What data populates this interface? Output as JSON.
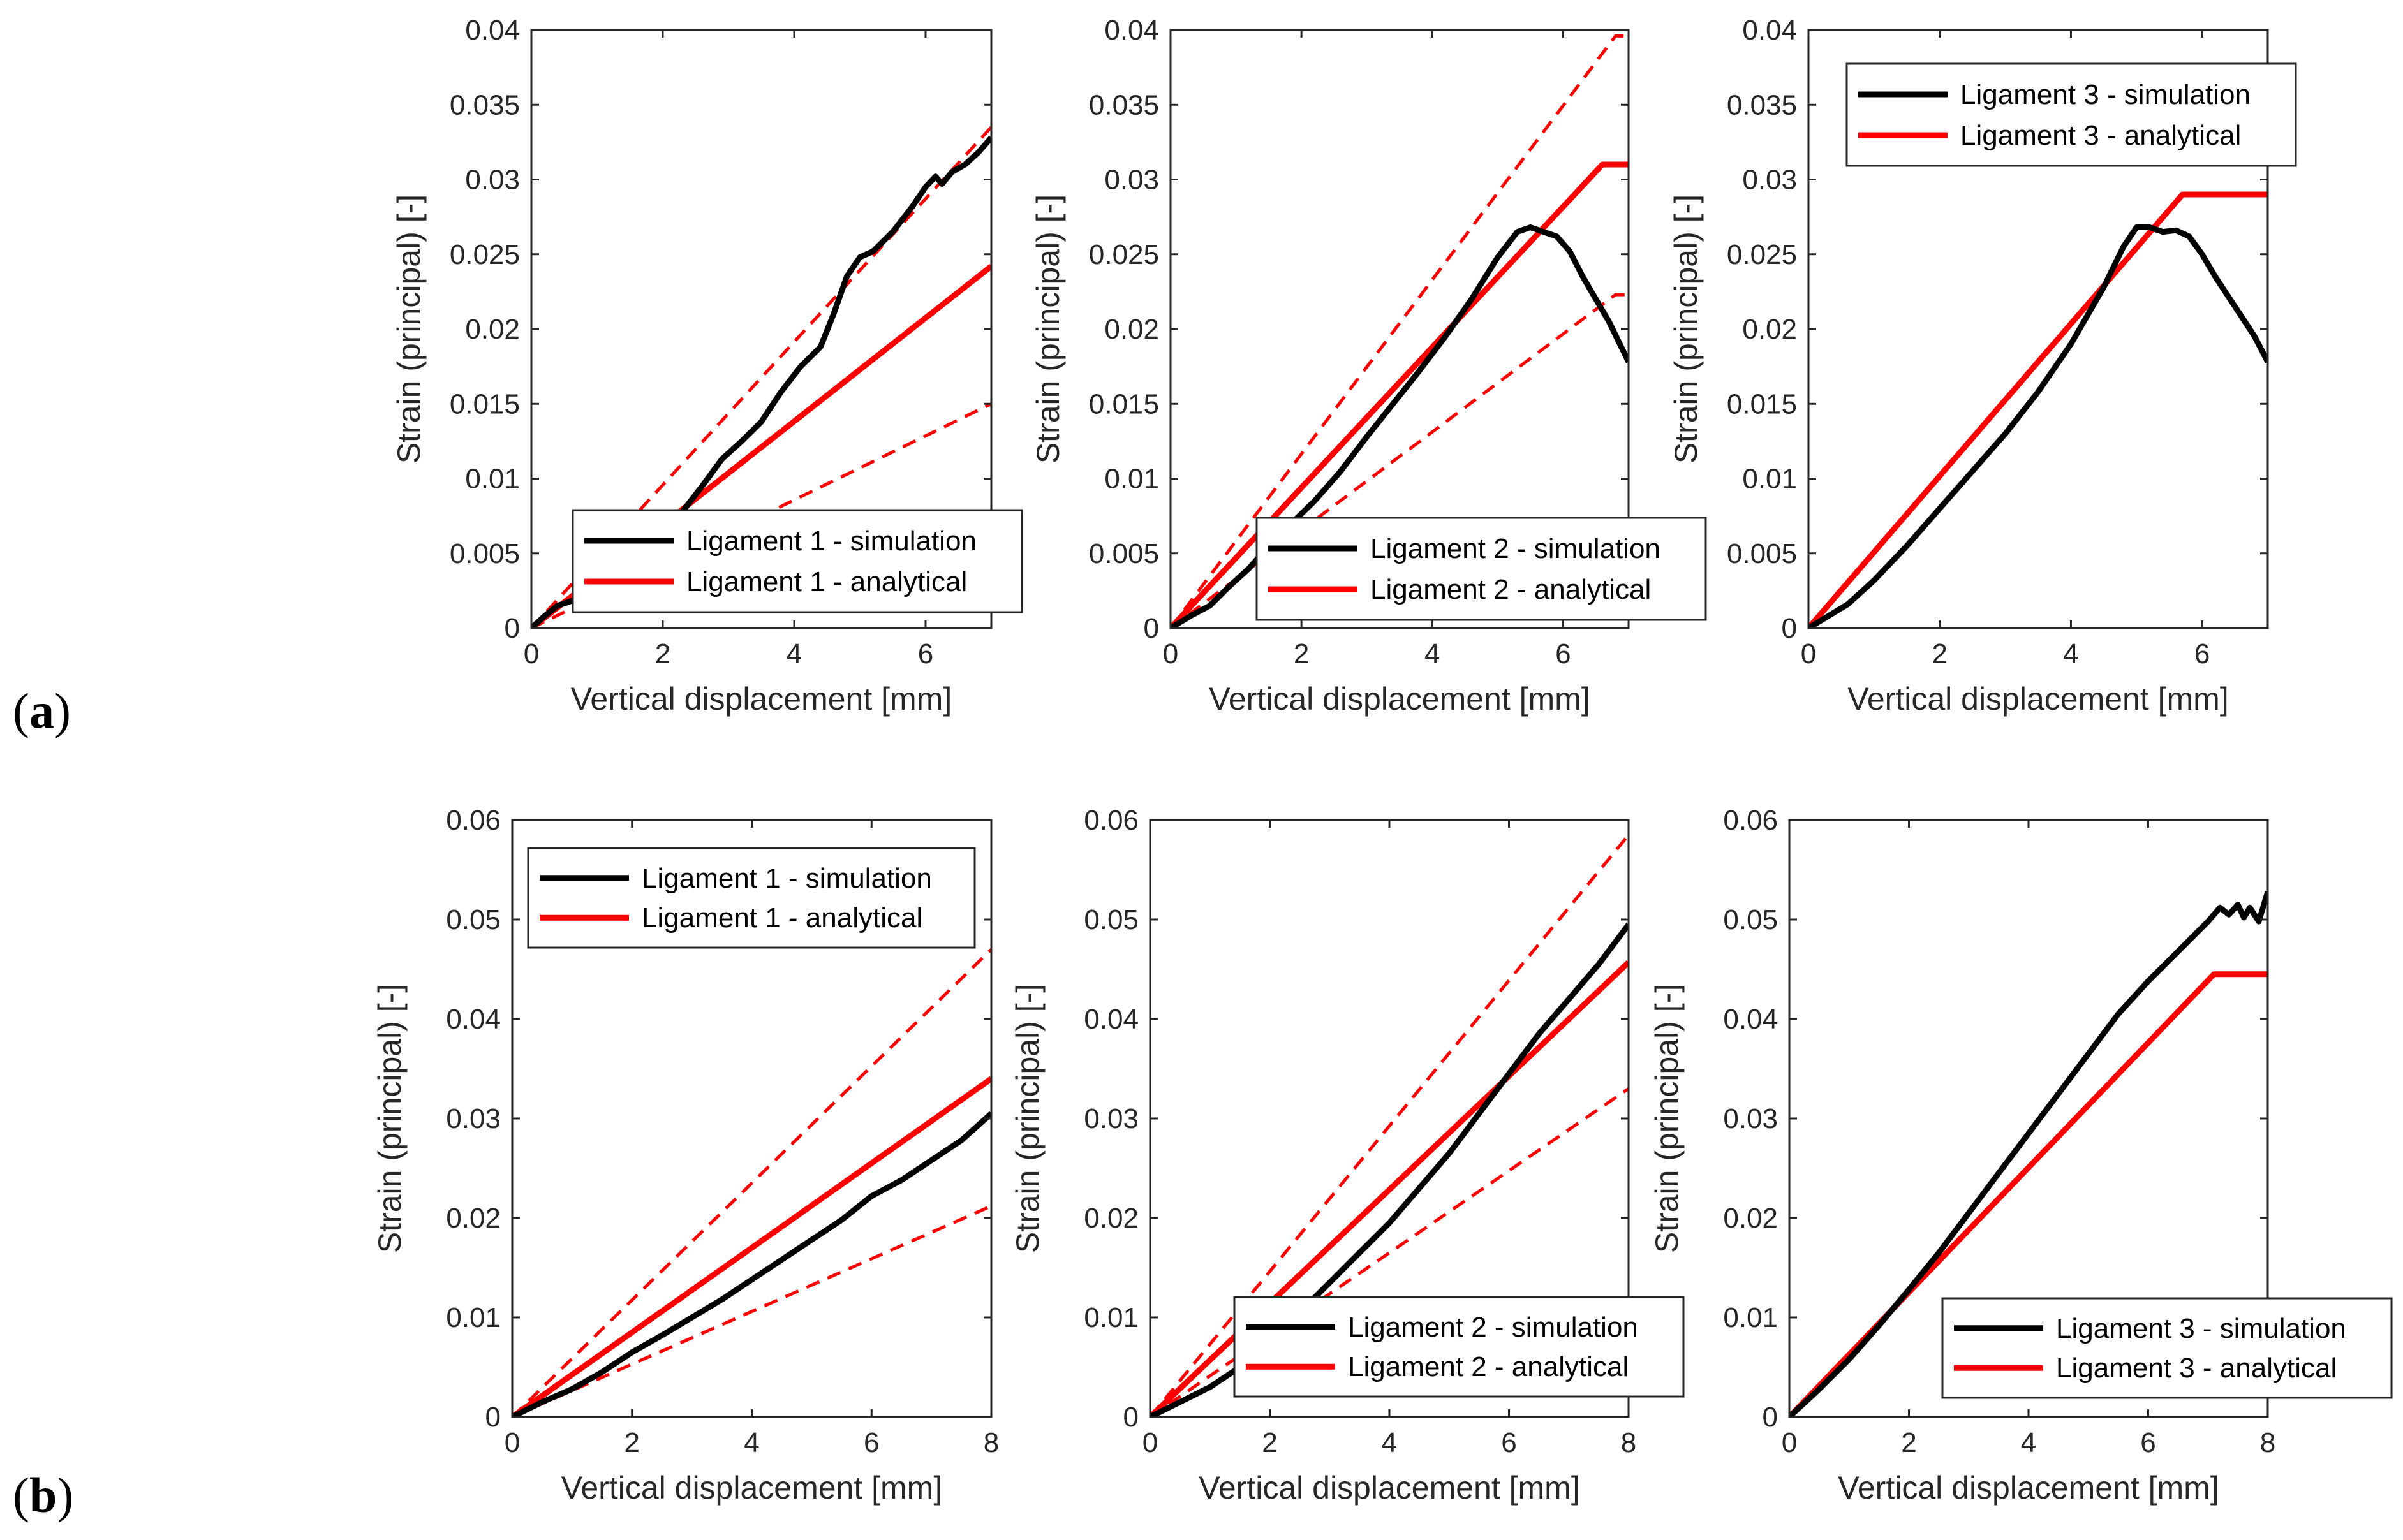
{
  "figure": {
    "row_labels": [
      {
        "open": "(",
        "letter": "a",
        "close": ")"
      },
      {
        "open": "(",
        "letter": "b",
        "close": ")"
      }
    ]
  },
  "colors": {
    "simulation": "#000000",
    "analytical": "#ff0000"
  },
  "chart_data": [
    {
      "type": "line",
      "row": "a",
      "xlabel": "Vertical displacement [mm]",
      "ylabel": "Strain (principal) [-]",
      "xlim": [
        0,
        7
      ],
      "ylim": [
        0,
        0.04
      ],
      "xticks": [
        0,
        2,
        4,
        6
      ],
      "yticks": [
        0,
        0.005,
        0.01,
        0.015,
        0.02,
        0.025,
        0.03,
        0.035,
        0.04
      ],
      "ytick_labels": [
        "0",
        "0.005",
        "0.01",
        "0.015",
        "0.02",
        "0.025",
        "0.03",
        "0.035",
        "0.04"
      ],
      "legend_position": "lower-center",
      "series": [
        {
          "name": "Ligament 1 - simulation",
          "style": "solid",
          "color": "simulation",
          "x": [
            0,
            0.2,
            0.4,
            0.6,
            0.8,
            1.0,
            1.3,
            1.6,
            2.0,
            2.3,
            2.6,
            2.9,
            3.2,
            3.5,
            3.8,
            4.1,
            4.4,
            4.6,
            4.8,
            5.0,
            5.2,
            5.5,
            5.8,
            6.0,
            6.15,
            6.25,
            6.4,
            6.6,
            6.8,
            7.0
          ],
          "y": [
            0,
            0.0008,
            0.0015,
            0.0018,
            0.0022,
            0.003,
            0.0042,
            0.0055,
            0.0068,
            0.0078,
            0.0095,
            0.0113,
            0.0125,
            0.0138,
            0.0158,
            0.0175,
            0.0188,
            0.021,
            0.0235,
            0.0248,
            0.0252,
            0.0265,
            0.0282,
            0.0295,
            0.0302,
            0.0297,
            0.0305,
            0.031,
            0.0318,
            0.0328
          ]
        },
        {
          "name": "Ligament 1 - analytical",
          "style": "solid",
          "color": "analytical",
          "x": [
            0,
            7
          ],
          "y": [
            0,
            0.0242
          ]
        },
        {
          "name": "upper bound",
          "style": "dashed",
          "color": "analytical",
          "x": [
            0,
            7
          ],
          "y": [
            0,
            0.0335
          ]
        },
        {
          "name": "lower bound",
          "style": "dashed",
          "color": "analytical",
          "x": [
            0,
            7
          ],
          "y": [
            0,
            0.015
          ]
        }
      ],
      "legend": [
        "Ligament 1 - simulation",
        "Ligament 1 - analytical"
      ]
    },
    {
      "type": "line",
      "row": "a",
      "xlabel": "Vertical displacement [mm]",
      "ylabel": "Strain (principal) [-]",
      "xlim": [
        0,
        7
      ],
      "ylim": [
        0,
        0.04
      ],
      "xticks": [
        0,
        2,
        4,
        6
      ],
      "yticks": [
        0,
        0.005,
        0.01,
        0.015,
        0.02,
        0.025,
        0.03,
        0.035,
        0.04
      ],
      "ytick_labels": [
        "0",
        "0.005",
        "0.01",
        "0.015",
        "0.02",
        "0.025",
        "0.03",
        "0.035",
        "0.04"
      ],
      "legend_position": "lower-right",
      "series": [
        {
          "name": "Ligament 2 - simulation",
          "style": "solid",
          "color": "simulation",
          "x": [
            0,
            0.3,
            0.6,
            0.9,
            1.2,
            1.5,
            1.8,
            2.2,
            2.6,
            3.0,
            3.4,
            3.8,
            4.2,
            4.6,
            5.0,
            5.3,
            5.5,
            5.7,
            5.9,
            6.1,
            6.3,
            6.5,
            6.7,
            7.0
          ],
          "y": [
            0,
            0.0008,
            0.0015,
            0.0028,
            0.004,
            0.0055,
            0.0068,
            0.0085,
            0.0105,
            0.0128,
            0.015,
            0.0172,
            0.0195,
            0.022,
            0.0248,
            0.0265,
            0.0268,
            0.0265,
            0.0262,
            0.0252,
            0.0235,
            0.022,
            0.0205,
            0.0178
          ]
        },
        {
          "name": "Ligament 2 - analytical",
          "style": "solid",
          "color": "analytical",
          "x": [
            0,
            6.6,
            7.0
          ],
          "y": [
            0,
            0.031,
            0.031
          ]
        },
        {
          "name": "upper bound",
          "style": "dashed",
          "color": "analytical",
          "x": [
            0,
            6.8,
            7.0
          ],
          "y": [
            0,
            0.0396,
            0.0396
          ]
        },
        {
          "name": "lower bound",
          "style": "dashed",
          "color": "analytical",
          "x": [
            0,
            6.8,
            7.0
          ],
          "y": [
            0,
            0.0223,
            0.0223
          ]
        }
      ],
      "legend": [
        "Ligament 2 - simulation",
        "Ligament 2 - analytical"
      ]
    },
    {
      "type": "line",
      "row": "a",
      "xlabel": "Vertical displacement [mm]",
      "ylabel": "Strain (principal) [-]",
      "xlim": [
        0,
        7
      ],
      "ylim": [
        0,
        0.04
      ],
      "xticks": [
        0,
        2,
        4,
        6
      ],
      "yticks": [
        0,
        0.005,
        0.01,
        0.015,
        0.02,
        0.025,
        0.03,
        0.035,
        0.04
      ],
      "ytick_labels": [
        "0",
        "0.005",
        "0.01",
        "0.015",
        "0.02",
        "0.025",
        "0.03",
        "0.035",
        "0.04"
      ],
      "legend_position": "top-right",
      "series": [
        {
          "name": "Ligament 3 - simulation",
          "style": "solid",
          "color": "simulation",
          "x": [
            0,
            0.3,
            0.6,
            1.0,
            1.5,
            2.0,
            2.5,
            3.0,
            3.5,
            4.0,
            4.5,
            4.8,
            5.0,
            5.2,
            5.4,
            5.6,
            5.8,
            6.0,
            6.2,
            6.5,
            6.8,
            7.0
          ],
          "y": [
            0,
            0.0008,
            0.0016,
            0.0032,
            0.0055,
            0.008,
            0.0105,
            0.013,
            0.0158,
            0.019,
            0.0228,
            0.0255,
            0.0268,
            0.0268,
            0.0265,
            0.0266,
            0.0262,
            0.025,
            0.0235,
            0.0215,
            0.0195,
            0.0178
          ]
        },
        {
          "name": "Ligament 3 - analytical",
          "style": "solid",
          "color": "analytical",
          "x": [
            0,
            5.7,
            7.0
          ],
          "y": [
            0,
            0.029,
            0.029
          ]
        }
      ],
      "legend": [
        "Ligament 3 - simulation",
        "Ligament 3 - analytical"
      ]
    },
    {
      "type": "line",
      "row": "b",
      "xlabel": "Vertical displacement [mm]",
      "ylabel": "Strain (principal) [-]",
      "xlim": [
        0,
        8
      ],
      "ylim": [
        0,
        0.06
      ],
      "xticks": [
        0,
        2,
        4,
        6,
        8
      ],
      "yticks": [
        0,
        0.01,
        0.02,
        0.03,
        0.04,
        0.05,
        0.06
      ],
      "ytick_labels": [
        "0",
        "0.01",
        "0.02",
        "0.03",
        "0.04",
        "0.05",
        "0.06"
      ],
      "legend_position": "top-left",
      "series": [
        {
          "name": "Ligament 1 - simulation",
          "style": "solid",
          "color": "simulation",
          "x": [
            0,
            0.5,
            1.0,
            1.5,
            2.0,
            2.5,
            3.0,
            3.5,
            4.0,
            4.5,
            5.0,
            5.5,
            6.0,
            6.5,
            7.0,
            7.5,
            8.0
          ],
          "y": [
            0,
            0.0015,
            0.0028,
            0.0045,
            0.0065,
            0.0082,
            0.01,
            0.0118,
            0.0138,
            0.0158,
            0.0178,
            0.0198,
            0.0222,
            0.0238,
            0.0258,
            0.0278,
            0.0305
          ]
        },
        {
          "name": "Ligament 1 - analytical",
          "style": "solid",
          "color": "analytical",
          "x": [
            0,
            8
          ],
          "y": [
            0,
            0.034
          ]
        },
        {
          "name": "upper bound",
          "style": "dashed",
          "color": "analytical",
          "x": [
            0,
            8
          ],
          "y": [
            0,
            0.047
          ]
        },
        {
          "name": "lower bound",
          "style": "dashed",
          "color": "analytical",
          "x": [
            0,
            8
          ],
          "y": [
            0,
            0.0212
          ]
        }
      ],
      "legend": [
        "Ligament 1 - simulation",
        "Ligament 1 - analytical"
      ]
    },
    {
      "type": "line",
      "row": "b",
      "xlabel": "Vertical displacement [mm]",
      "ylabel": "Strain (principal) [-]",
      "xlim": [
        0,
        8
      ],
      "ylim": [
        0,
        0.06
      ],
      "xticks": [
        0,
        2,
        4,
        6,
        8
      ],
      "yticks": [
        0,
        0.01,
        0.02,
        0.03,
        0.04,
        0.05,
        0.06
      ],
      "ytick_labels": [
        "0",
        "0.01",
        "0.02",
        "0.03",
        "0.04",
        "0.05",
        "0.06"
      ],
      "legend_position": "bottom-right",
      "series": [
        {
          "name": "Ligament 2 - simulation",
          "style": "solid",
          "color": "simulation",
          "x": [
            0,
            0.5,
            1.0,
            1.5,
            2.0,
            2.5,
            3.0,
            3.5,
            4.0,
            4.5,
            5.0,
            5.5,
            6.0,
            6.5,
            7.0,
            7.5,
            8.0
          ],
          "y": [
            0,
            0.0015,
            0.003,
            0.005,
            0.0075,
            0.0105,
            0.0135,
            0.0165,
            0.0195,
            0.023,
            0.0265,
            0.0305,
            0.0345,
            0.0385,
            0.042,
            0.0455,
            0.0495
          ]
        },
        {
          "name": "Ligament 2 - analytical",
          "style": "solid",
          "color": "analytical",
          "x": [
            0,
            8
          ],
          "y": [
            0,
            0.0457
          ]
        },
        {
          "name": "upper bound",
          "style": "dashed",
          "color": "analytical",
          "x": [
            0,
            8
          ],
          "y": [
            0,
            0.0585
          ]
        },
        {
          "name": "lower bound",
          "style": "dashed",
          "color": "analytical",
          "x": [
            0,
            8
          ],
          "y": [
            0,
            0.033
          ]
        }
      ],
      "legend": [
        "Ligament 2 - simulation",
        "Ligament 2 - analytical"
      ]
    },
    {
      "type": "line",
      "row": "b",
      "xlabel": "Vertical displacement [mm]",
      "ylabel": "Strain (principal) [-]",
      "xlim": [
        0,
        8
      ],
      "ylim": [
        0,
        0.06
      ],
      "xticks": [
        0,
        2,
        4,
        6,
        8
      ],
      "yticks": [
        0,
        0.01,
        0.02,
        0.03,
        0.04,
        0.05,
        0.06
      ],
      "ytick_labels": [
        "0",
        "0.01",
        "0.02",
        "0.03",
        "0.04",
        "0.05",
        "0.06"
      ],
      "legend_position": "bottom-right",
      "series": [
        {
          "name": "Ligament 3 - simulation",
          "style": "solid",
          "color": "simulation",
          "x": [
            0,
            0.5,
            1.0,
            1.5,
            2.0,
            2.5,
            3.0,
            3.5,
            4.0,
            4.5,
            5.0,
            5.5,
            6.0,
            6.5,
            7.0,
            7.2,
            7.35,
            7.5,
            7.6,
            7.7,
            7.85,
            8.0
          ],
          "y": [
            0,
            0.0028,
            0.0058,
            0.0092,
            0.0128,
            0.0165,
            0.0205,
            0.0245,
            0.0285,
            0.0325,
            0.0365,
            0.0405,
            0.0438,
            0.0468,
            0.0498,
            0.0512,
            0.0505,
            0.0515,
            0.0502,
            0.0512,
            0.0498,
            0.0528
          ]
        },
        {
          "name": "Ligament 3 - analytical",
          "style": "solid",
          "color": "analytical",
          "x": [
            0,
            7.1,
            8.0
          ],
          "y": [
            0,
            0.0445,
            0.0445
          ]
        }
      ],
      "legend": [
        "Ligament 3 - simulation",
        "Ligament 3 - analytical"
      ]
    }
  ]
}
